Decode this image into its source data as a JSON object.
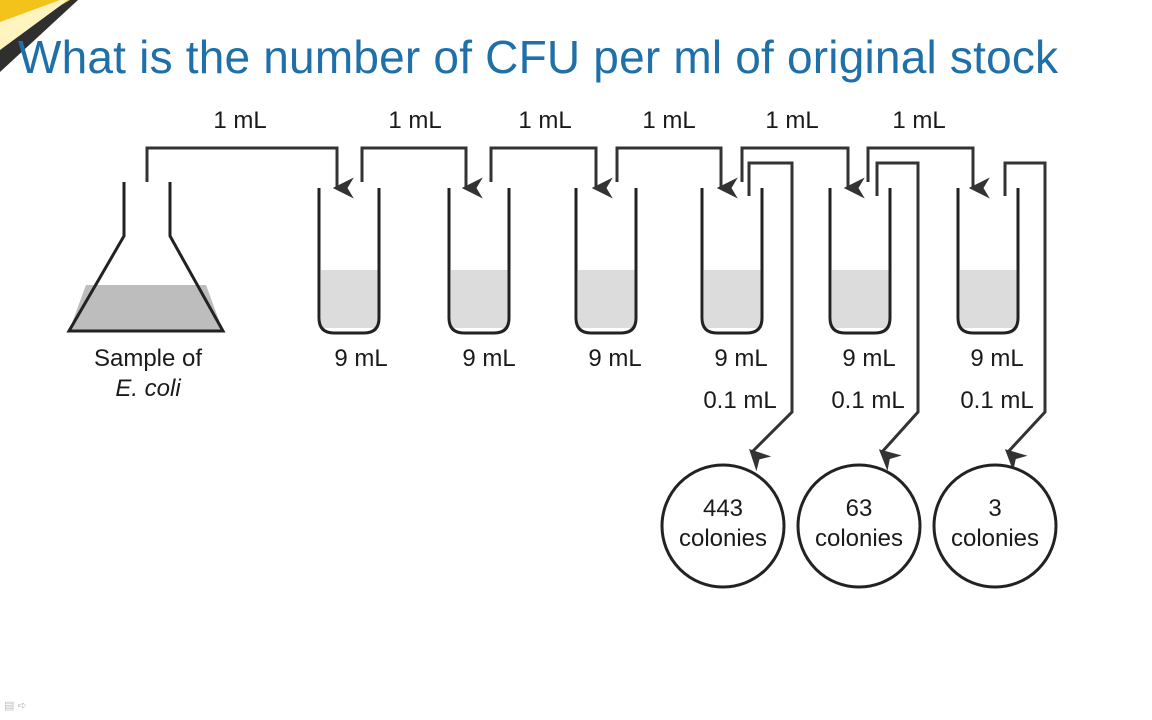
{
  "slide": {
    "title": "What is the number of CFU per ml of original stock",
    "nav_icons": "▤ ➪"
  },
  "diagram": {
    "flask_label_line1": "Sample of",
    "flask_label_line2": "E. coli",
    "transfers": [
      "1 mL",
      "1 mL",
      "1 mL",
      "1 mL",
      "1 mL",
      "1 mL"
    ],
    "tube_volumes": [
      "9 mL",
      "9 mL",
      "9 mL",
      "9 mL",
      "9 mL",
      "9 mL"
    ],
    "plating_volumes": [
      "0.1 mL",
      "0.1 mL",
      "0.1 mL"
    ],
    "plates": [
      {
        "count": "443",
        "unit": "colonies"
      },
      {
        "count": "63",
        "unit": "colonies"
      },
      {
        "count": "3",
        "unit": "colonies"
      }
    ]
  },
  "colors": {
    "title": "#1f6fa8",
    "corner_logo": "#f3c21b"
  }
}
